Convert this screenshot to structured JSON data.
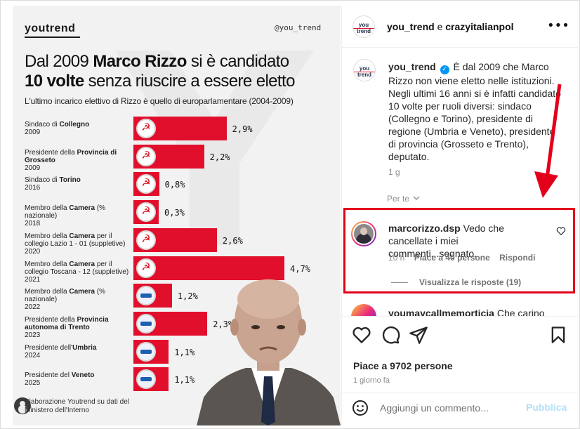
{
  "infographic": {
    "brand": "youtrend",
    "handle": "@you_trend",
    "headline_1a": "Dal 2009 ",
    "headline_1b": "Marco Rizzo",
    "headline_1c": " si è candidato",
    "headline_2a": "10 volte",
    "headline_2b": " senza riuscire a essere eletto",
    "subtitle": "L'ultimo incarico elettivo di Rizzo è quello di europarlamentare (2004-2009)",
    "rows": [
      {
        "pre": "Sindaco di ",
        "bold": "Collegno",
        "post": "",
        "year": "2009",
        "value": 2.9,
        "label": "2,9%"
      },
      {
        "pre": "Presidente della ",
        "bold": "Provincia di Grosseto",
        "post": "",
        "year": "2009",
        "value": 2.2,
        "label": "2,2%"
      },
      {
        "pre": "Sindaco di ",
        "bold": "Torino",
        "post": "",
        "year": "2016",
        "value": 0.8,
        "label": "0,8%"
      },
      {
        "pre": "Membro della ",
        "bold": "Camera",
        "post": " (% nazionale)",
        "year": "2018",
        "value": 0.3,
        "label": "0,3%"
      },
      {
        "pre": "Membro della ",
        "bold": "Camera",
        "post": " per il collegio Lazio 1 - 01 (suppletive)",
        "year": "2020",
        "value": 2.6,
        "label": "2,6%"
      },
      {
        "pre": "Membro della ",
        "bold": "Camera",
        "post": " per il collegio Toscana - 12 (suppletive)",
        "year": "2021",
        "value": 4.7,
        "label": "4,7%"
      },
      {
        "pre": "Membro della ",
        "bold": "Camera",
        "post": " (% nazionale)",
        "year": "2022",
        "value": 1.2,
        "label": "1,2%"
      },
      {
        "pre": "Presidente della ",
        "bold": "Provincia autonoma di Trento",
        "post": "",
        "year": "2023",
        "value": 2.3,
        "label": "2,3%"
      },
      {
        "pre": "Presidente dell'",
        "bold": "Umbria",
        "post": "",
        "year": "2024",
        "value": 1.1,
        "label": "1,1%"
      },
      {
        "pre": "Presidente del ",
        "bold": "Veneto",
        "post": "",
        "year": "2025",
        "value": 1.1,
        "label": "1,1%"
      }
    ],
    "source_note": "Elaborazione Youtrend su dati del Ministero dell'Interno"
  },
  "post": {
    "header": {
      "account_1": "you_trend",
      "joiner": " e ",
      "account_2": "crazyitalianpol"
    },
    "avatar_text_1": "you",
    "avatar_text_2": "trend",
    "caption": {
      "user": "you_trend",
      "text": "È dal 2009 che Marco Rizzo non viene eletto nelle istituzioni. Negli ultimi 16 anni si è infatti candidato 10 volte per ruoli diversi: sindaco (Collegno e Torino), presidente di regione (Umbria e Veneto), presidente di provincia (Grosseto e Trento), deputato.",
      "time": "1 g",
      "see_translation": "Per te"
    },
    "highlighted_comment": {
      "user": "marcorizzo.dsp",
      "text": "Vedo che cancellate i miei commenti...segnato.",
      "time": "10 h",
      "likes": "Piace a 40 persone",
      "reply": "Rispondi",
      "view_replies": "Visualizza le risposte (19)"
    },
    "next_comment": {
      "user": "youmaycallmemorticia",
      "text": "Che carino"
    },
    "likes": "Piace a 9702 persone",
    "date": "1 giorno fa",
    "comment_placeholder": "Aggiungi un commento...",
    "publish_label": "Pubblica"
  },
  "colors": {
    "bar": "#e10f2c",
    "highlight": "#e3001b",
    "link": "#b2dffc"
  },
  "icons": [
    "more-icon",
    "verified-icon",
    "chevron-down-icon",
    "heart-icon",
    "comment-icon",
    "share-icon",
    "bookmark-icon",
    "emoji-icon"
  ]
}
